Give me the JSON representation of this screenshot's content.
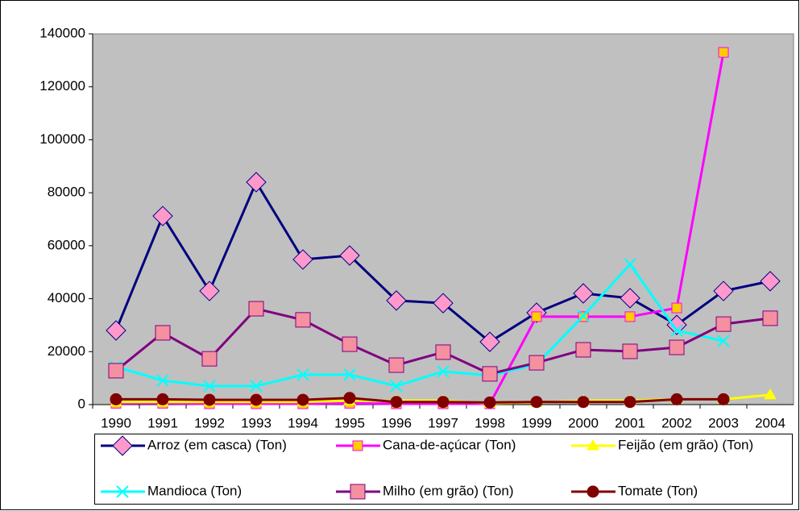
{
  "chart_data": {
    "type": "line",
    "categories": [
      "1990",
      "1991",
      "1992",
      "1993",
      "1994",
      "1995",
      "1996",
      "1997",
      "1998",
      "1999",
      "2000",
      "2001",
      "2002",
      "2003",
      "2004"
    ],
    "series": [
      {
        "name": "Arroz (em casca) (Ton)",
        "color": "#000080",
        "marker": "diamond",
        "marker_fill": "#ff99cc",
        "values": [
          28000,
          71200,
          42900,
          84000,
          54800,
          56300,
          39300,
          38300,
          23700,
          34700,
          42000,
          40200,
          30100,
          42900,
          46600
        ]
      },
      {
        "name": "Cana-de-açúcar (Ton)",
        "color": "#ff00ff",
        "marker": "square-small",
        "marker_fill": "#ffcc00",
        "values": [
          500,
          500,
          300,
          300,
          300,
          500,
          300,
          300,
          300,
          33200,
          33200,
          33200,
          36500,
          133000,
          null
        ]
      },
      {
        "name": "Feijão (em grão) (Ton)",
        "color": "#ffff00",
        "marker": "triangle",
        "marker_fill": "#ffff00",
        "values": [
          1000,
          1000,
          1000,
          1000,
          1000,
          1500,
          1500,
          1500,
          500,
          800,
          1500,
          1500,
          2000,
          2000,
          3700
        ]
      },
      {
        "name": "Mandioca (Ton)",
        "color": "#00ffff",
        "marker": "x",
        "marker_fill": "#00ffff",
        "values": [
          14300,
          9100,
          7000,
          7000,
          11300,
          11300,
          7000,
          12500,
          11000,
          15200,
          33500,
          53000,
          28000,
          24000,
          null
        ]
      },
      {
        "name": "Milho (em grão) (Ton)",
        "color": "#800080",
        "marker": "square",
        "marker_fill": "#f4909f",
        "values": [
          12800,
          27100,
          17300,
          36200,
          32000,
          22800,
          14900,
          19800,
          11600,
          15800,
          20700,
          20100,
          21600,
          30400,
          32600
        ]
      },
      {
        "name": "Tomate (Ton)",
        "color": "#800000",
        "marker": "circle",
        "marker_fill": "#800000",
        "values": [
          2000,
          2000,
          1800,
          1800,
          1800,
          2500,
          1000,
          1000,
          800,
          1000,
          1000,
          1000,
          2000,
          2000,
          null
        ]
      }
    ],
    "ylim": [
      0,
      140000
    ],
    "yticks": [
      0,
      20000,
      40000,
      60000,
      80000,
      100000,
      120000,
      140000
    ],
    "grid": false,
    "legend": "bottom",
    "plot_background": "#c0c0c0"
  }
}
